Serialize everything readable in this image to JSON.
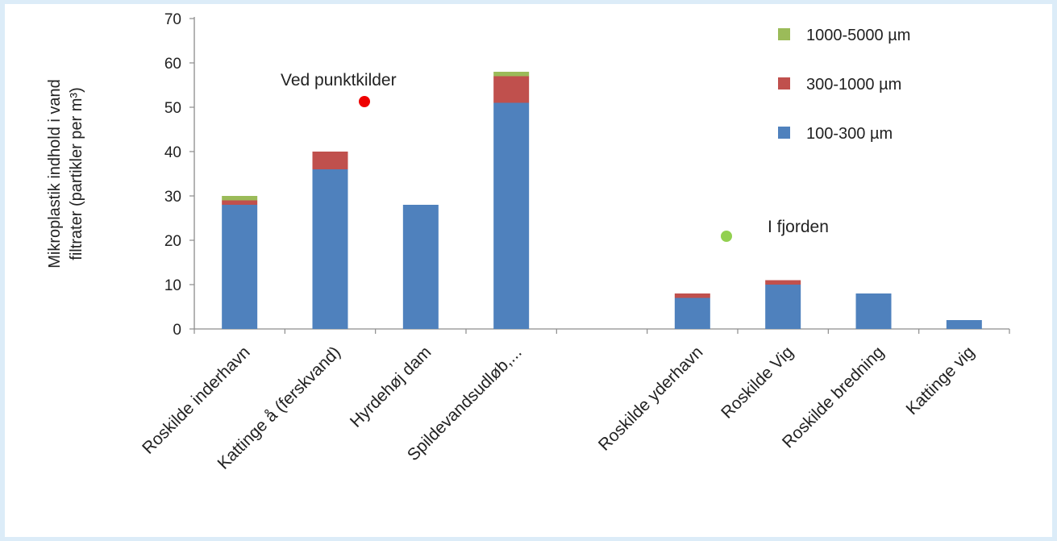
{
  "chart_data": {
    "type": "bar",
    "stacked": true,
    "ylabel_lines": [
      "Mikroplastik indhold i vand",
      "filtrater (partikler per m³)"
    ],
    "ylim": [
      0,
      70
    ],
    "yticks": [
      0,
      10,
      20,
      30,
      40,
      50,
      60,
      70
    ],
    "grid": false,
    "legend_position": "top-right",
    "categories": [
      "Roskilde inderhavn",
      "Kattinge å (ferskvand)",
      "Hyrdehøj dam",
      "Spildevandsudløb,...",
      "",
      "Roskilde yderhavn",
      "Roskilde Vig",
      "Roskilde bredning",
      "Kattinge vig"
    ],
    "series": [
      {
        "name": "100-300 µm",
        "color": "#4f81bd",
        "values": [
          28,
          36,
          28,
          51,
          0,
          7,
          10,
          8,
          2
        ]
      },
      {
        "name": "300-1000 µm",
        "color": "#c0504d",
        "values": [
          1,
          4,
          0,
          6,
          0,
          1,
          1,
          0,
          0
        ]
      },
      {
        "name": "1000-5000 µm",
        "color": "#9bbb59",
        "values": [
          1,
          0,
          0,
          1,
          0,
          0,
          0,
          0,
          0
        ]
      }
    ],
    "annotations": [
      {
        "text": "Ved punktkilder",
        "marker_color": "#ee0000"
      },
      {
        "text": "I fjorden",
        "marker_color": "#92d050"
      }
    ]
  }
}
